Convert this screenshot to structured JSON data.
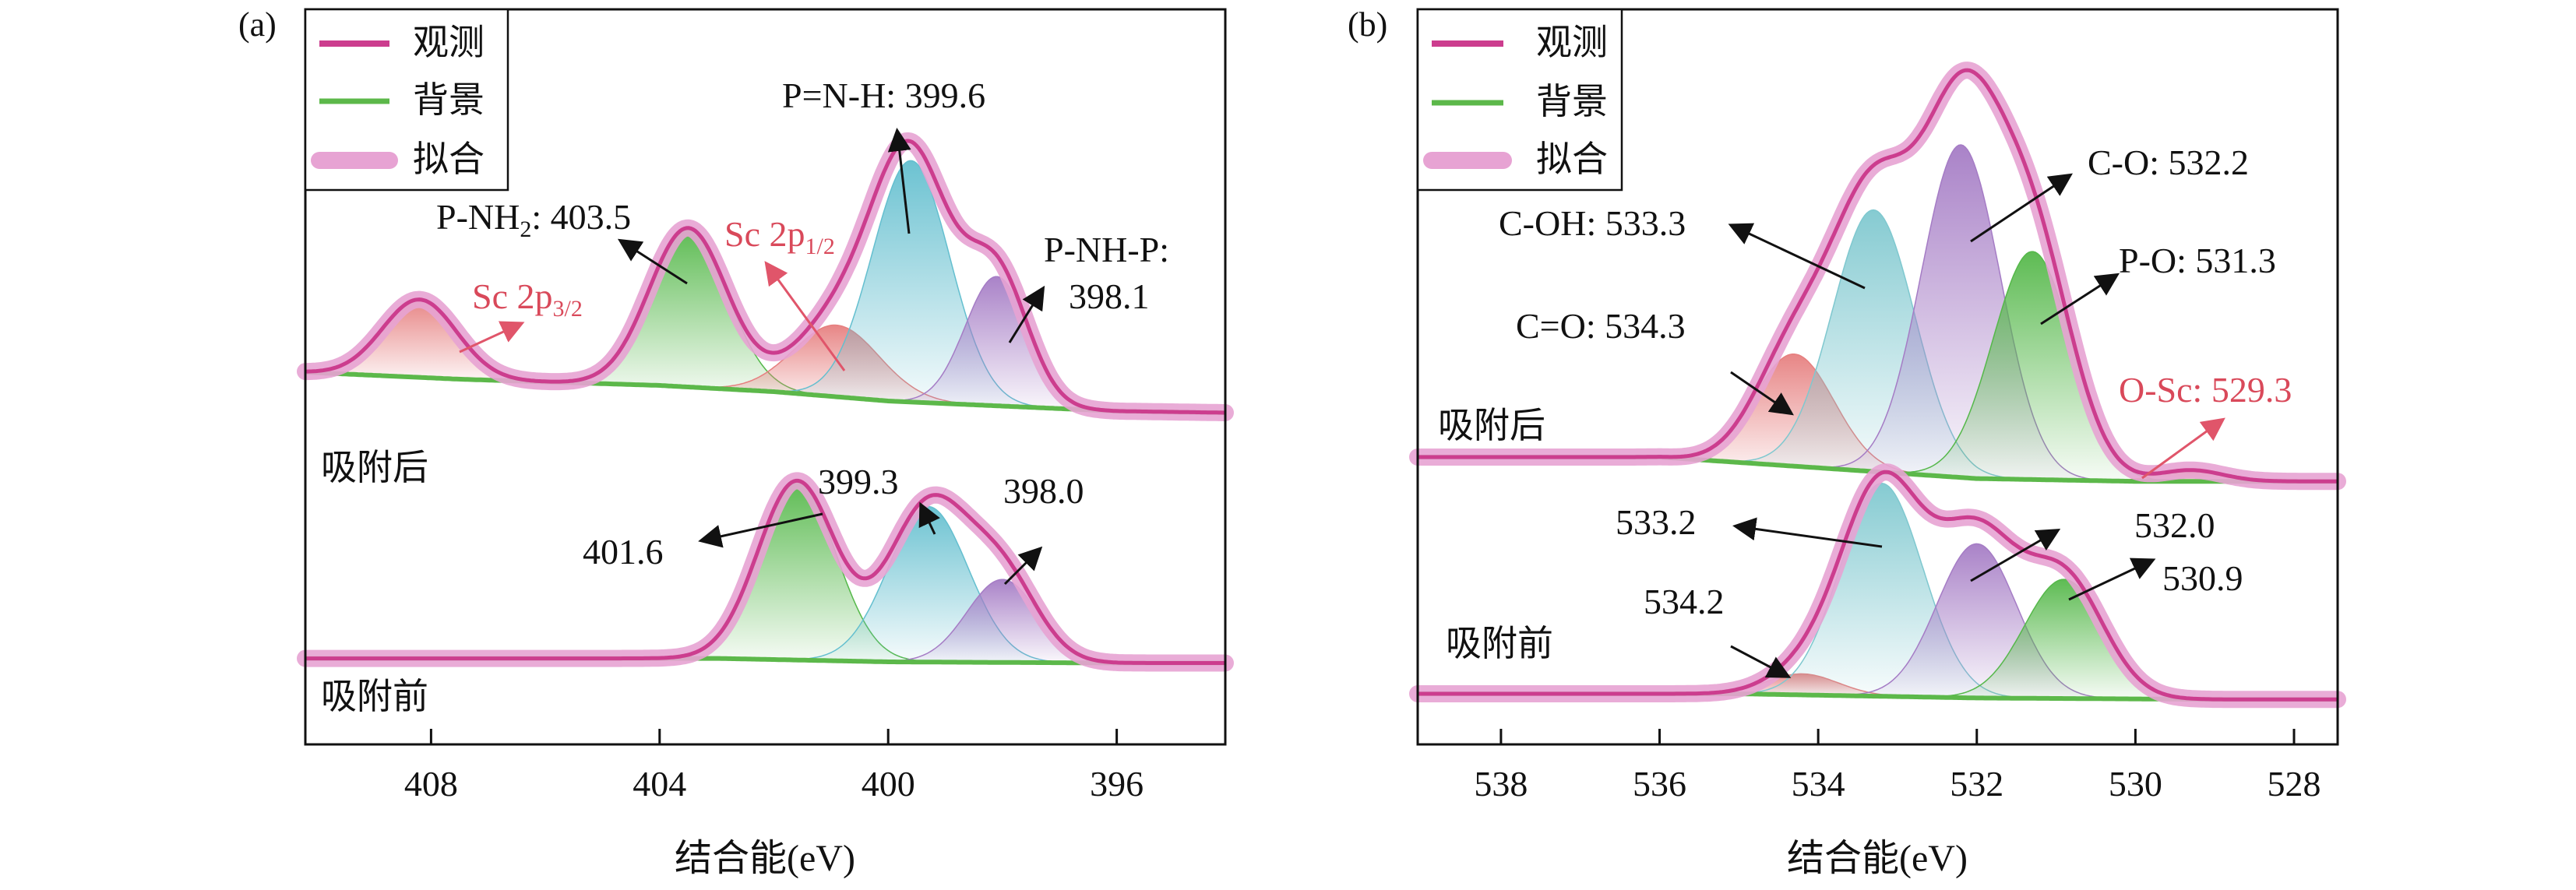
{
  "colors": {
    "observed": "#cc3d8e",
    "background": "#5cb84a",
    "fit": "#e7a3d3",
    "text": "#111111",
    "red_label": "#d9495a",
    "red_arrow": "#e0556a"
  },
  "chart_data": [
    {
      "type": "line",
      "panel_label": "(a)",
      "xlabel": "结合能(eV)",
      "ylabel": "",
      "xlim": [
        410.2,
        394.1
      ],
      "x_reversed": true,
      "xticks": [
        408,
        404,
        400,
        396
      ],
      "xtick_labels": [
        "408",
        "404",
        "400",
        "396"
      ],
      "grid": false,
      "legend": {
        "position": "top-left",
        "entries": [
          {
            "label": "观测",
            "series": "observed"
          },
          {
            "label": "背景",
            "series": "background"
          },
          {
            "label": "拟合",
            "series": "fit"
          }
        ]
      },
      "samples": [
        {
          "label": "吸附后",
          "background_points": [
            [
              410.2,
              0.41
            ],
            [
              407.5,
              0.365
            ],
            [
              404,
              0.325
            ],
            [
              402,
              0.285
            ],
            [
              400,
              0.225
            ],
            [
              396,
              0.16
            ],
            [
              394.1,
              0.15
            ]
          ],
          "peaks": [
            {
              "name": "Sc 2p3/2",
              "center": 408.2,
              "height": 0.5,
              "sigma": 0.65,
              "color": "#e67f7f"
            },
            {
              "name": "P-NH2",
              "center": 403.5,
              "height": 1.02,
              "sigma": 0.68,
              "color": "#55b84a"
            },
            {
              "name": "Sc 2p1/2",
              "center": 400.9,
              "height": 0.46,
              "sigma": 0.75,
              "color": "#e67f7f"
            },
            {
              "name": "P=N-H",
              "center": 399.6,
              "height": 1.55,
              "sigma": 0.68,
              "color": "#64bfcf"
            },
            {
              "name": "P-NH-P",
              "center": 398.1,
              "height": 0.83,
              "sigma": 0.55,
              "color": "#a57cc5"
            }
          ],
          "annotations": [
            {
              "text": "P=N-H: 399.6",
              "sub": "",
              "color": "dark"
            },
            {
              "text": "P-NH",
              "sub": "2",
              "suffix": ": 403.5",
              "color": "dark"
            },
            {
              "text": "Sc 2p",
              "sub": "1/2",
              "color": "red"
            },
            {
              "text": "Sc 2p",
              "sub": "3/2",
              "color": "red"
            },
            {
              "text": "P-NH-P:",
              "sub": "",
              "color": "dark"
            },
            {
              "text": "398.1",
              "sub": "",
              "color": "dark"
            }
          ]
        },
        {
          "label": "吸附前",
          "background_points": [
            [
              410.2,
              0.03
            ],
            [
              403,
              0.03
            ],
            [
              400,
              0.0
            ],
            [
              396,
              -0.01
            ],
            [
              394.1,
              -0.01
            ]
          ],
          "peaks": [
            {
              "name": "401.6",
              "center": 401.6,
              "height": 1.55,
              "sigma": 0.68,
              "color": "#55b84a"
            },
            {
              "name": "399.3",
              "center": 399.3,
              "height": 1.35,
              "sigma": 0.7,
              "color": "#64bfcf"
            },
            {
              "name": "398.0",
              "center": 398.0,
              "height": 0.72,
              "sigma": 0.62,
              "color": "#a57cc5"
            }
          ],
          "annotations": [
            {
              "text": "401.6",
              "color": "dark"
            },
            {
              "text": "399.3",
              "color": "dark"
            },
            {
              "text": "398.0",
              "color": "dark"
            }
          ]
        }
      ]
    },
    {
      "type": "line",
      "panel_label": "(b)",
      "xlabel": "结合能(eV)",
      "ylabel": "",
      "xlim": [
        539.05,
        527.45
      ],
      "x_reversed": true,
      "xticks": [
        538,
        536,
        534,
        532,
        530,
        528
      ],
      "xtick_labels": [
        "538",
        "536",
        "534",
        "532",
        "530",
        "528"
      ],
      "grid": false,
      "legend": {
        "position": "top-left",
        "entries": [
          {
            "label": "观测",
            "series": "observed"
          },
          {
            "label": "背景",
            "series": "background"
          },
          {
            "label": "拟合",
            "series": "fit"
          }
        ]
      },
      "samples": [
        {
          "label": "吸附后",
          "background_points": [
            [
              539.05,
              0.2
            ],
            [
              536,
              0.2
            ],
            [
              532,
              0.085
            ],
            [
              530,
              0.07
            ],
            [
              527.45,
              0.07
            ]
          ],
          "peaks": [
            {
              "name": "C=O",
              "center": 534.3,
              "height": 0.6,
              "sigma": 0.5,
              "color": "#e67f7f"
            },
            {
              "name": "C-OH",
              "center": 533.3,
              "height": 1.4,
              "sigma": 0.52,
              "color": "#7fc8cf"
            },
            {
              "name": "C-O",
              "center": 532.2,
              "height": 1.78,
              "sigma": 0.5,
              "color": "#a57cc5"
            },
            {
              "name": "P-O",
              "center": 531.3,
              "height": 1.22,
              "sigma": 0.5,
              "color": "#55b84a"
            },
            {
              "name": "O-Sc",
              "center": 529.3,
              "height": 0.06,
              "sigma": 0.4,
              "color": "#e6a050"
            }
          ],
          "annotations": [
            {
              "text": "C-O: 532.2",
              "color": "dark"
            },
            {
              "text": "C-OH: 533.3",
              "color": "dark"
            },
            {
              "text": "P-O: 531.3",
              "color": "dark"
            },
            {
              "text": "C=O: 534.3",
              "color": "dark"
            },
            {
              "text": "O-Sc: 529.3",
              "color": "red"
            }
          ]
        },
        {
          "label": "吸附前",
          "background_points": [
            [
              539.05,
              0.05
            ],
            [
              535,
              0.05
            ],
            [
              532,
              0.02
            ],
            [
              529,
              0.01
            ],
            [
              527.45,
              0.01
            ]
          ],
          "peaks": [
            {
              "name": "534.2",
              "center": 534.2,
              "height": 0.15,
              "sigma": 0.45,
              "color": "#e67f7f"
            },
            {
              "name": "533.2",
              "center": 533.2,
              "height": 1.52,
              "sigma": 0.52,
              "color": "#7fc8cf"
            },
            {
              "name": "532.0",
              "center": 532.0,
              "height": 1.1,
              "sigma": 0.5,
              "color": "#a57cc5"
            },
            {
              "name": "530.9",
              "center": 530.9,
              "height": 0.85,
              "sigma": 0.5,
              "color": "#55b84a"
            }
          ],
          "annotations": [
            {
              "text": "533.2",
              "color": "dark"
            },
            {
              "text": "532.0",
              "color": "dark"
            },
            {
              "text": "530.9",
              "color": "dark"
            },
            {
              "text": "534.2",
              "color": "dark"
            }
          ]
        }
      ]
    }
  ]
}
